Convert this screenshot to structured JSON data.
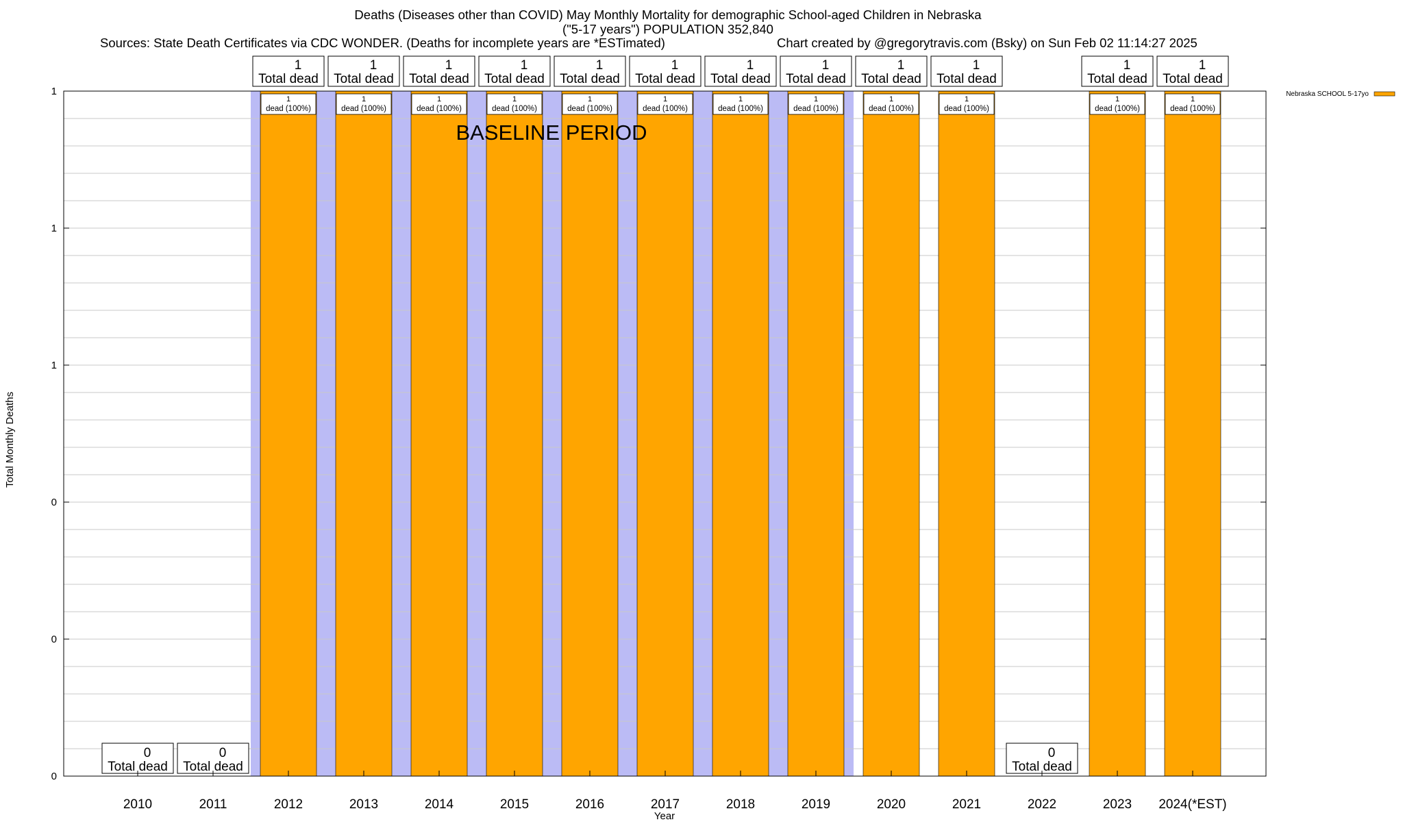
{
  "header": {
    "title_line1": "Deaths (Diseases other than COVID) May Monthly Mortality for demographic School-aged Children in Nebraska",
    "title_line2": "(\"5-17 years\") POPULATION 352,840",
    "sources": "Sources: State Death Certificates via CDC WONDER. (Deaths for incomplete years are *ESTimated)",
    "credit": "Chart created by @gregorytravis.com (Bsky) on Sun Feb 02 11:14:27 2025"
  },
  "colors": {
    "bar": "#FFA500",
    "baseline_shade": "#BBBBF5",
    "grid": "#C8C8C8"
  },
  "chart_data": {
    "type": "bar",
    "title": "Deaths (Diseases other than COVID) May Monthly Mortality for demographic School-aged Children in Nebraska",
    "xlabel": "Year",
    "ylabel": "Total Monthly Deaths",
    "ylim": [
      0,
      1
    ],
    "y_tick_labels": [
      "0",
      "0",
      "0",
      "1",
      "1",
      "1"
    ],
    "grid": true,
    "legend_position": "top-right",
    "annotation": "BASELINE PERIOD",
    "baseline_period": [
      "2012",
      "2019"
    ],
    "categories": [
      "2010",
      "2011",
      "2012",
      "2013",
      "2014",
      "2015",
      "2016",
      "2017",
      "2018",
      "2019",
      "2020",
      "2021",
      "2022",
      "2023",
      "2024(*EST)"
    ],
    "series": [
      {
        "name": "Nebraska SCHOOL 5-17yo",
        "values": [
          0,
          0,
          1,
          1,
          1,
          1,
          1,
          1,
          1,
          1,
          1,
          1,
          0,
          1,
          1
        ]
      }
    ],
    "total_label_text": "Total dead",
    "inner_labels": [
      "",
      "",
      "1\ndead (100%)",
      "1\ndead (100%)",
      "1\ndead (100%)",
      "1\ndead (100%)",
      "1\ndead (100%)",
      "1\ndead (100%)",
      "1\ndead (100%)",
      "1\ndead (100%)",
      "1\ndead (100%)",
      "1\ndead (100%)",
      "",
      "1\ndead (100%)",
      "1\ndead (100%)"
    ]
  }
}
